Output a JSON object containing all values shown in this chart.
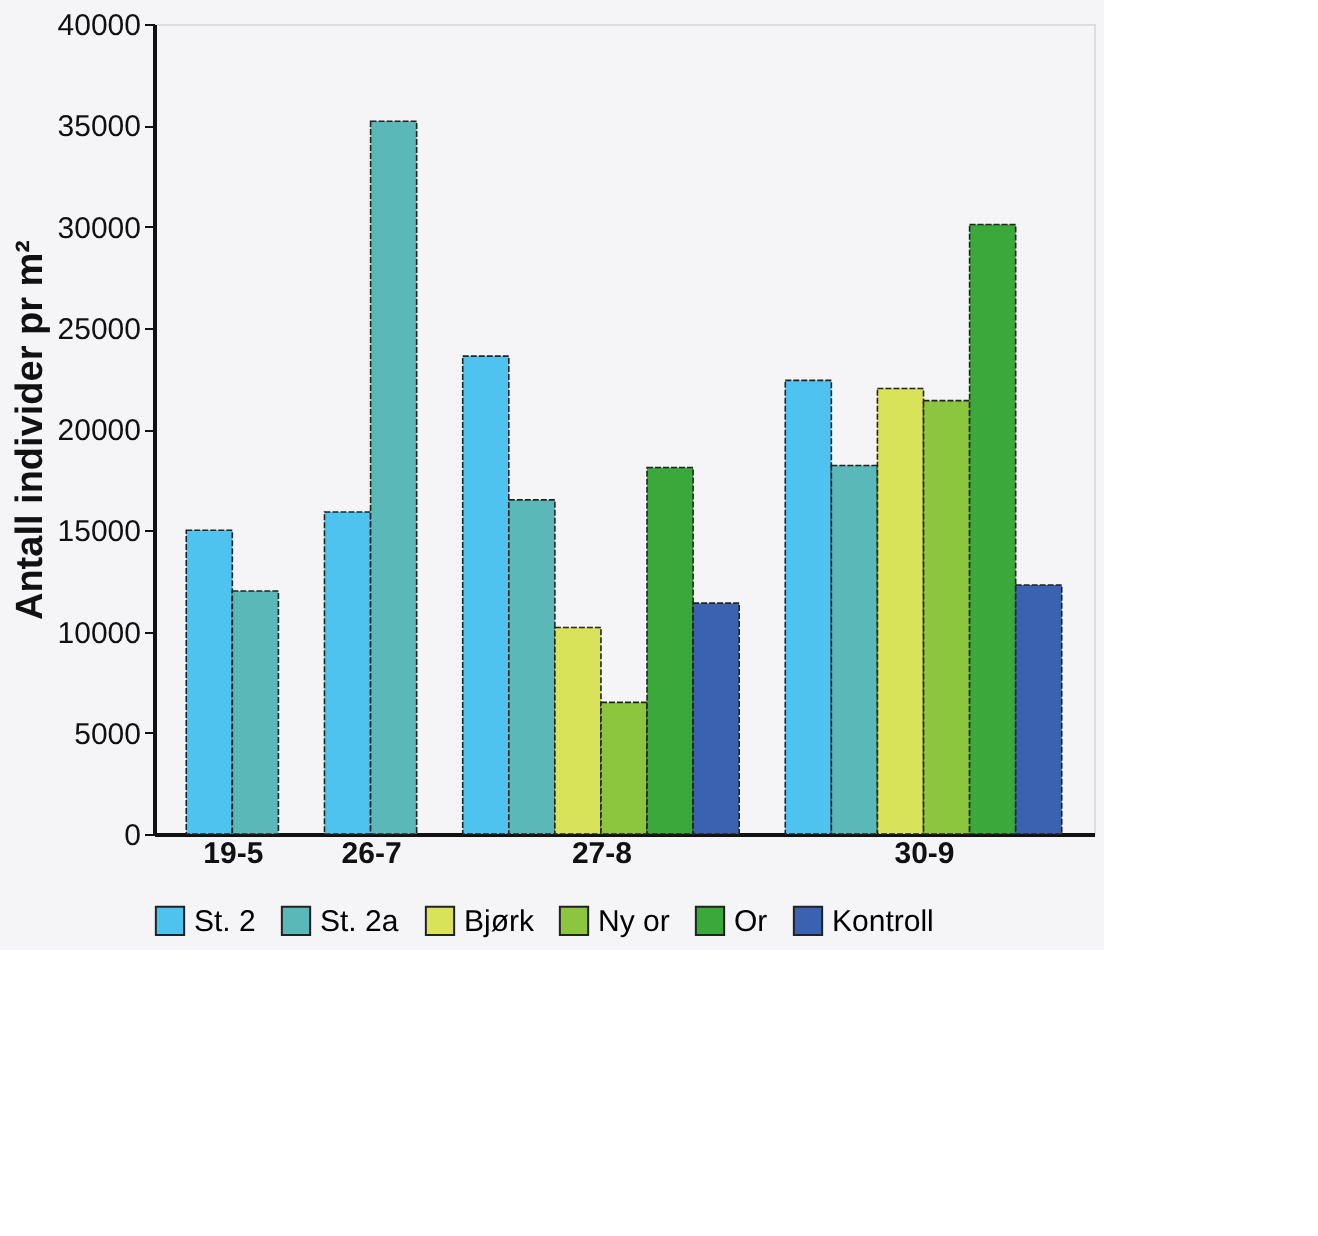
{
  "chart_data": {
    "type": "bar",
    "ylabel": "Antall individer pr m²",
    "categories": [
      "19-5",
      "26-7",
      "27-8",
      "30-9"
    ],
    "series": [
      {
        "name": "St. 2",
        "color": "#4fc3f0",
        "values": [
          15000,
          15900,
          23600,
          22400
        ]
      },
      {
        "name": "St. 2a",
        "color": "#5bb8b8",
        "values": [
          12000,
          35200,
          16500,
          18200
        ]
      },
      {
        "name": "Bjørk",
        "color": "#d8e35a",
        "values": [
          null,
          null,
          10200,
          22000
        ]
      },
      {
        "name": "Ny or",
        "color": "#8cc63f",
        "values": [
          null,
          null,
          6500,
          21400
        ]
      },
      {
        "name": "Or",
        "color": "#3aa83a",
        "values": [
          null,
          null,
          18100,
          30100
        ]
      },
      {
        "name": "Kontroll",
        "color": "#3a62b0",
        "values": [
          null,
          null,
          11400,
          12300
        ]
      }
    ],
    "ylim": [
      0,
      40000
    ],
    "yticks": [
      0,
      5000,
      10000,
      15000,
      20000,
      25000,
      30000,
      35000,
      40000
    ],
    "grid": false,
    "legend": "bottom"
  }
}
